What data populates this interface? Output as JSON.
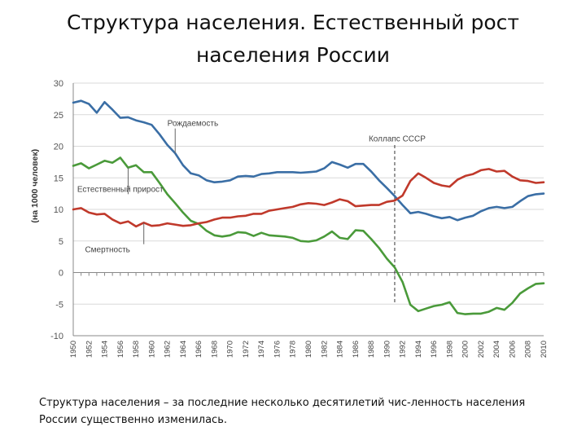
{
  "slide": {
    "title": "Структура населения. Естественный рост населения России",
    "caption": "Структура населения – за последние несколько десятилетий чис-ленность населения России существенно изменилась."
  },
  "chart_data": {
    "type": "line",
    "ylabel": "(на 1000 человек)",
    "xlabel": "",
    "ylim": [
      -10,
      30
    ],
    "yticks": [
      30,
      25,
      20,
      15,
      10,
      5,
      0,
      -5,
      -10
    ],
    "grid": true,
    "xticks": [
      "1950",
      "1952",
      "1954",
      "1956",
      "1958",
      "1960",
      "1962",
      "1964",
      "1966",
      "1968",
      "1970",
      "1972",
      "1974",
      "1976",
      "1978",
      "1980",
      "1982",
      "1984",
      "1986",
      "1988",
      "1990",
      "1992",
      "1994",
      "1996",
      "1998",
      "2000",
      "2002",
      "2004",
      "2006",
      "2008",
      "2010"
    ],
    "annotations": [
      {
        "text": "Коллапс СССР",
        "x": 1991
      }
    ],
    "series": [
      {
        "name": "Рождаемость",
        "color": "#3a6ea5",
        "x": [
          1950,
          1951,
          1952,
          1953,
          1954,
          1955,
          1956,
          1957,
          1958,
          1959,
          1960,
          1961,
          1962,
          1963,
          1964,
          1965,
          1966,
          1967,
          1968,
          1969,
          1970,
          1971,
          1972,
          1973,
          1974,
          1975,
          1976,
          1977,
          1978,
          1979,
          1980,
          1981,
          1982,
          1983,
          1984,
          1985,
          1986,
          1987,
          1988,
          1989,
          1990,
          1991,
          1992,
          1993,
          1994,
          1995,
          1996,
          1997,
          1998,
          1999,
          2000,
          2001,
          2002,
          2003,
          2004,
          2005,
          2006,
          2007,
          2008,
          2009,
          2010
        ],
        "values": [
          26.9,
          27.2,
          26.7,
          25.3,
          27.0,
          25.8,
          24.5,
          24.6,
          24.1,
          23.8,
          23.4,
          21.9,
          20.2,
          18.9,
          17.0,
          15.7,
          15.4,
          14.6,
          14.3,
          14.4,
          14.6,
          15.2,
          15.3,
          15.2,
          15.6,
          15.7,
          15.9,
          15.9,
          15.9,
          15.8,
          15.9,
          16.0,
          16.5,
          17.5,
          17.1,
          16.6,
          17.2,
          17.2,
          16.0,
          14.6,
          13.4,
          12.1,
          10.7,
          9.4,
          9.6,
          9.3,
          8.9,
          8.6,
          8.8,
          8.3,
          8.7,
          9.0,
          9.7,
          10.2,
          10.4,
          10.2,
          10.4,
          11.3,
          12.1,
          12.4,
          12.5
        ]
      },
      {
        "name": "Естественный прирост",
        "color": "#4a9a3a",
        "x": [
          1950,
          1951,
          1952,
          1953,
          1954,
          1955,
          1956,
          1957,
          1958,
          1959,
          1960,
          1961,
          1962,
          1963,
          1964,
          1965,
          1966,
          1967,
          1968,
          1969,
          1970,
          1971,
          1972,
          1973,
          1974,
          1975,
          1976,
          1977,
          1978,
          1979,
          1980,
          1981,
          1982,
          1983,
          1984,
          1985,
          1986,
          1987,
          1988,
          1989,
          1990,
          1991,
          1992,
          1993,
          1994,
          1995,
          1996,
          1997,
          1998,
          1999,
          2000,
          2001,
          2002,
          2003,
          2004,
          2005,
          2006,
          2007,
          2008,
          2009,
          2010
        ],
        "values": [
          16.9,
          17.3,
          16.5,
          17.1,
          17.7,
          17.4,
          18.2,
          16.6,
          17.0,
          15.9,
          15.9,
          14.2,
          12.4,
          11.0,
          9.5,
          8.2,
          7.7,
          6.6,
          5.9,
          5.7,
          5.9,
          6.4,
          6.3,
          5.8,
          6.3,
          5.9,
          5.8,
          5.7,
          5.5,
          5.0,
          4.9,
          5.1,
          5.7,
          6.5,
          5.5,
          5.3,
          6.7,
          6.6,
          5.3,
          3.9,
          2.2,
          0.8,
          -1.5,
          -5.1,
          -6.1,
          -5.7,
          -5.3,
          -5.1,
          -4.7,
          -6.4,
          -6.6,
          -6.5,
          -6.5,
          -6.2,
          -5.6,
          -5.9,
          -4.8,
          -3.3,
          -2.5,
          -1.8,
          -1.7
        ]
      },
      {
        "name": "Смертность",
        "color": "#c0392b",
        "x": [
          1950,
          1951,
          1952,
          1953,
          1954,
          1955,
          1956,
          1957,
          1958,
          1959,
          1960,
          1961,
          1962,
          1963,
          1964,
          1965,
          1966,
          1967,
          1968,
          1969,
          1970,
          1971,
          1972,
          1973,
          1974,
          1975,
          1976,
          1977,
          1978,
          1979,
          1980,
          1981,
          1982,
          1983,
          1984,
          1985,
          1986,
          1987,
          1988,
          1989,
          1990,
          1991,
          1992,
          1993,
          1994,
          1995,
          1996,
          1997,
          1998,
          1999,
          2000,
          2001,
          2002,
          2003,
          2004,
          2005,
          2006,
          2007,
          2008,
          2009,
          2010
        ],
        "values": [
          10.0,
          10.2,
          9.5,
          9.2,
          9.3,
          8.4,
          7.8,
          8.1,
          7.3,
          7.9,
          7.4,
          7.5,
          7.8,
          7.6,
          7.4,
          7.5,
          7.8,
          8.0,
          8.4,
          8.7,
          8.7,
          8.9,
          9.0,
          9.3,
          9.3,
          9.8,
          10.0,
          10.2,
          10.4,
          10.8,
          11.0,
          10.9,
          10.7,
          11.1,
          11.6,
          11.3,
          10.5,
          10.6,
          10.7,
          10.7,
          11.2,
          11.4,
          12.2,
          14.5,
          15.7,
          15.0,
          14.2,
          13.8,
          13.6,
          14.7,
          15.3,
          15.6,
          16.2,
          16.4,
          16.0,
          16.1,
          15.2,
          14.6,
          14.5,
          14.2,
          14.3
        ]
      }
    ],
    "series_labels": [
      {
        "series": 0,
        "text": "Рождаемость",
        "x": 1962,
        "y": 23.2
      },
      {
        "series": 1,
        "text": "Естественный прирост",
        "x": 1950.5,
        "y": 12.8
      },
      {
        "series": 2,
        "text": "Смертность",
        "x": 1951.5,
        "y": 3.2
      }
    ]
  }
}
